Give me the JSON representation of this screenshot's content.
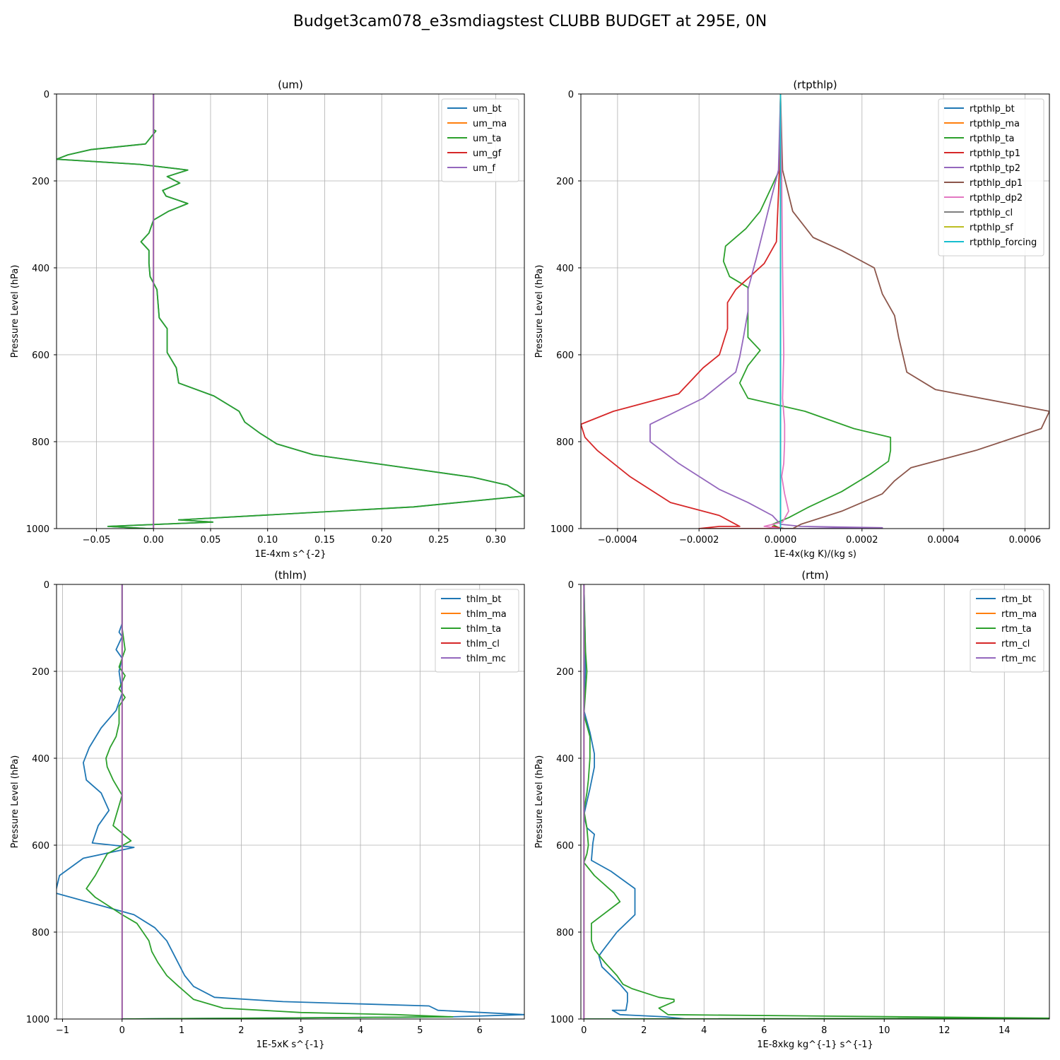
{
  "figure": {
    "title": "Budget3cam078_e3smdiagstest CLUBB BUDGET at 295E, 0N"
  },
  "chart_data": [
    {
      "type": "line",
      "title": "(um)",
      "xlabel": "1E-4xm s^{-2}",
      "ylabel": "Pressure Level (hPa)",
      "xlim": [
        -0.085,
        0.325
      ],
      "ylim": [
        1000,
        0
      ],
      "y_inverted": true,
      "xticks": [
        -0.05,
        0,
        0.05,
        0.1,
        0.15,
        0.2,
        0.25,
        0.3
      ],
      "xtick_labels": [
        "−0.05",
        "0.00",
        "0.05",
        "0.10",
        "0.15",
        "0.20",
        "0.25",
        "0.30"
      ],
      "yticks": [
        0,
        200,
        400,
        600,
        800,
        1000
      ],
      "ytick_labels": [
        "0",
        "200",
        "400",
        "600",
        "800",
        "1000"
      ],
      "grid": true,
      "legend_position": "top-right",
      "series": [
        {
          "name": "um_bt",
          "color": "#1f77b4",
          "hidden_behind_other_series": true,
          "x": [
            0,
            0,
            0.002,
            -0.007,
            -0.055,
            -0.075,
            -0.085,
            -0.012,
            0.03,
            0.012,
            0.023,
            0.008,
            0.011,
            0.03,
            0.013,
            0,
            -0.004,
            -0.011,
            -0.004,
            -0.004,
            -0.003,
            0.003,
            0.005,
            0.012,
            0.012,
            0.02,
            0.022,
            0.053,
            0.075,
            0.08,
            0.093,
            0.108,
            0.14,
            0.28,
            0.31,
            0.325,
            0.228,
            0.022,
            0.052,
            -0.04,
            -0.005,
            0
          ],
          "y": [
            0,
            82,
            85,
            115,
            128,
            140,
            150,
            162,
            175,
            190,
            205,
            222,
            235,
            252,
            270,
            290,
            320,
            340,
            360,
            390,
            420,
            450,
            515,
            540,
            595,
            630,
            665,
            695,
            730,
            755,
            780,
            805,
            830,
            882,
            900,
            925,
            950,
            980,
            985,
            995,
            1000,
            1000
          ]
        },
        {
          "name": "um_ma",
          "color": "#ff7f0e",
          "x": [
            0,
            0
          ],
          "y": [
            0,
            1000
          ]
        },
        {
          "name": "um_ta",
          "color": "#2ca02c",
          "x": [
            0,
            0,
            0.002,
            -0.007,
            -0.055,
            -0.075,
            -0.085,
            -0.012,
            0.03,
            0.012,
            0.023,
            0.008,
            0.011,
            0.03,
            0.013,
            0,
            -0.004,
            -0.011,
            -0.004,
            -0.004,
            -0.003,
            0.003,
            0.005,
            0.012,
            0.012,
            0.02,
            0.022,
            0.053,
            0.075,
            0.08,
            0.093,
            0.108,
            0.14,
            0.28,
            0.31,
            0.325,
            0.228,
            0.022,
            0.052,
            -0.04,
            -0.005,
            0
          ],
          "y": [
            0,
            82,
            85,
            115,
            128,
            140,
            150,
            162,
            175,
            190,
            205,
            222,
            235,
            252,
            270,
            290,
            320,
            340,
            360,
            390,
            420,
            450,
            515,
            540,
            595,
            630,
            665,
            695,
            730,
            755,
            780,
            805,
            830,
            882,
            900,
            925,
            950,
            980,
            985,
            995,
            1000,
            1000
          ]
        },
        {
          "name": "um_gf",
          "color": "#d62728",
          "x": [
            0,
            0
          ],
          "y": [
            0,
            1000
          ]
        },
        {
          "name": "um_f",
          "color": "#9467bd",
          "x": [
            0,
            0
          ],
          "y": [
            0,
            1000
          ]
        }
      ]
    },
    {
      "type": "line",
      "title": "(rtpthlp)",
      "xlabel": "1E-4x(kg K)/(kg s)",
      "ylabel": "Pressure Level (hPa)",
      "xlim": [
        -0.00049,
        0.00066
      ],
      "ylim": [
        1000,
        0
      ],
      "y_inverted": true,
      "xticks": [
        -0.0004,
        -0.0002,
        0,
        0.0002,
        0.0004,
        0.0006
      ],
      "xtick_labels": [
        "−0.0004",
        "−0.0002",
        "0.0000",
        "0.0002",
        "0.0004",
        "0.0006"
      ],
      "yticks": [
        0,
        200,
        400,
        600,
        800,
        1000
      ],
      "ytick_labels": [
        "0",
        "200",
        "400",
        "600",
        "800",
        "1000"
      ],
      "grid": true,
      "legend_position": "top-right",
      "series": [
        {
          "name": "rtpthlp_bt",
          "color": "#1f77b4",
          "x": [
            0,
            0
          ],
          "y": [
            0,
            1000
          ]
        },
        {
          "name": "rtpthlp_ma",
          "color": "#ff7f0e",
          "x": [
            0,
            0
          ],
          "y": [
            0,
            1000
          ]
        },
        {
          "name": "rtpthlp_ta",
          "color": "#2ca02c",
          "x": [
            0,
            -3e-06,
            -2e-05,
            -5e-05,
            -8.5e-05,
            -0.000135,
            -0.00014,
            -0.000125,
            -8e-05,
            -8e-05,
            -8e-05,
            -8e-05,
            -5e-05,
            -8e-05,
            -0.0001,
            -8e-05,
            6e-05,
            0.00018,
            0.00027,
            0.00027,
            0.000265,
            0.00022,
            0.00015,
            7e-05,
            2e-05,
            -2e-05,
            0
          ],
          "y": [
            0,
            175,
            210,
            270,
            310,
            350,
            385,
            420,
            445,
            480,
            520,
            560,
            590,
            625,
            665,
            700,
            730,
            770,
            790,
            820,
            845,
            875,
            915,
            950,
            975,
            990,
            1000
          ]
        },
        {
          "name": "rtpthlp_tp1",
          "color": "#d62728",
          "x": [
            0,
            -3e-06,
            -5e-06,
            -1e-05,
            -4e-05,
            -0.00011,
            -0.00013,
            -0.00013,
            -0.00014,
            -0.00015,
            -0.00019,
            -0.00025,
            -0.00041,
            -0.00049,
            -0.00048,
            -0.00045,
            -0.00037,
            -0.00027,
            -0.00015,
            -0.00011,
            -0.0001,
            -0.00015,
            -0.0002,
            1e-05,
            -2e-05,
            0
          ],
          "y": [
            0,
            175,
            230,
            340,
            390,
            450,
            480,
            540,
            570,
            600,
            630,
            690,
            730,
            760,
            790,
            820,
            880,
            940,
            970,
            990,
            995,
            995,
            1000,
            1000,
            995,
            1000
          ]
        },
        {
          "name": "rtpthlp_tp2",
          "color": "#9467bd",
          "x": [
            0,
            -5e-06,
            -2e-05,
            -6e-05,
            -8e-05,
            -8e-05,
            -9e-05,
            -0.0001,
            -0.00011,
            -0.00019,
            -0.00032,
            -0.00032,
            -0.00025,
            -0.00015,
            -8e-05,
            -2e-05,
            0,
            5e-05,
            0.00025,
            5e-05,
            0
          ],
          "y": [
            0,
            175,
            230,
            380,
            450,
            500,
            555,
            605,
            640,
            700,
            760,
            800,
            850,
            910,
            940,
            970,
            990,
            995,
            998,
            1000,
            1000
          ]
        },
        {
          "name": "rtpthlp_dp1",
          "color": "#8c564b",
          "x": [
            0,
            5e-06,
            3e-05,
            8e-05,
            0.00015,
            0.00023,
            0.00025,
            0.00028,
            0.00029,
            0.0003,
            0.00031,
            0.00038,
            0.00066,
            0.00064,
            0.00048,
            0.00032,
            0.00028,
            0.00025,
            0.00015,
            5e-05,
            3e-05,
            0
          ],
          "y": [
            0,
            175,
            270,
            330,
            360,
            400,
            460,
            510,
            560,
            600,
            640,
            680,
            730,
            770,
            820,
            860,
            890,
            920,
            960,
            990,
            1000,
            1000
          ]
        },
        {
          "name": "rtpthlp_dp2",
          "color": "#e377c2",
          "x": [
            0,
            3e-06,
            5e-06,
            8e-06,
            5e-06,
            1e-05,
            1e-05,
            8e-06,
            3e-06,
            1e-05,
            2e-05,
            5e-06,
            -4e-05,
            0
          ],
          "y": [
            0,
            200,
            400,
            600,
            700,
            760,
            800,
            850,
            880,
            920,
            960,
            985,
            995,
            1000
          ]
        },
        {
          "name": "rtpthlp_cl",
          "color": "#7f7f7f",
          "x": [
            0,
            0
          ],
          "y": [
            0,
            1000
          ]
        },
        {
          "name": "rtpthlp_sf",
          "color": "#bcbd22",
          "x": [
            0,
            0
          ],
          "y": [
            0,
            1000
          ]
        },
        {
          "name": "rtpthlp_forcing",
          "color": "#17becf",
          "x": [
            0,
            0
          ],
          "y": [
            0,
            1000
          ]
        }
      ]
    },
    {
      "type": "line",
      "title": "(thlm)",
      "xlabel": "1E-5xK s^{-1}",
      "ylabel": "Pressure Level (hPa)",
      "xlim": [
        -1.1,
        6.75
      ],
      "ylim": [
        1000,
        0
      ],
      "y_inverted": true,
      "xticks": [
        -1,
        0,
        1,
        2,
        3,
        4,
        5,
        6
      ],
      "xtick_labels": [
        "−1",
        "0",
        "1",
        "2",
        "3",
        "4",
        "5",
        "6"
      ],
      "yticks": [
        0,
        200,
        400,
        600,
        800,
        1000
      ],
      "ytick_labels": [
        "0",
        "200",
        "400",
        "600",
        "800",
        "1000"
      ],
      "grid": true,
      "legend_position": "top-right",
      "series": [
        {
          "name": "thlm_bt",
          "color": "#1f77b4",
          "x": [
            0,
            0,
            -0.05,
            0,
            -0.1,
            0,
            -0.05,
            0,
            -0.1,
            -0.35,
            -0.55,
            -0.65,
            -0.6,
            -0.35,
            -0.22,
            -0.4,
            -0.5,
            0.2,
            -0.65,
            -1.05,
            -1.12,
            0.2,
            0.55,
            0.75,
            0.9,
            1.05,
            1.2,
            1.55,
            2.7,
            5.15,
            5.3,
            6.75,
            5.55,
            0
          ],
          "y": [
            0,
            90,
            110,
            120,
            150,
            170,
            200,
            250,
            290,
            330,
            375,
            410,
            450,
            480,
            520,
            555,
            595,
            605,
            630,
            670,
            710,
            760,
            790,
            820,
            860,
            900,
            925,
            950,
            960,
            970,
            980,
            990,
            995,
            1000
          ]
        },
        {
          "name": "thlm_ma",
          "color": "#ff7f0e",
          "x": [
            0,
            0
          ],
          "y": [
            0,
            1000
          ]
        },
        {
          "name": "thlm_ta",
          "color": "#2ca02c",
          "x": [
            0,
            0,
            0.05,
            -0.05,
            0.05,
            -0.05,
            0.05,
            -0.05,
            -0.05,
            -0.1,
            -0.2,
            -0.27,
            -0.25,
            -0.15,
            0,
            -0.15,
            0.15,
            -0.25,
            -0.45,
            -0.6,
            -0.45,
            0,
            0.25,
            0.35,
            0.45,
            0.5,
            0.6,
            0.75,
            0.95,
            1.2,
            1.7,
            3.0,
            4.6,
            5.55,
            0
          ],
          "y": [
            0,
            100,
            150,
            190,
            210,
            240,
            260,
            280,
            320,
            350,
            375,
            400,
            420,
            450,
            485,
            555,
            590,
            620,
            670,
            700,
            720,
            760,
            780,
            800,
            820,
            845,
            870,
            900,
            925,
            955,
            975,
            985,
            990,
            995,
            1000
          ]
        },
        {
          "name": "thlm_cl",
          "color": "#d62728",
          "x": [
            0,
            0
          ],
          "y": [
            0,
            1000
          ]
        },
        {
          "name": "thlm_mc",
          "color": "#9467bd",
          "x": [
            0,
            0
          ],
          "y": [
            0,
            1000
          ]
        }
      ]
    },
    {
      "type": "line",
      "title": "(rtm)",
      "xlabel": "1E-8xkg kg^{-1} s^{-1}",
      "ylabel": "Pressure Level (hPa)",
      "xlim": [
        -0.1,
        15.5
      ],
      "ylim": [
        1000,
        0
      ],
      "y_inverted": true,
      "xticks": [
        0,
        2,
        4,
        6,
        8,
        10,
        12,
        14
      ],
      "xtick_labels": [
        "0",
        "2",
        "4",
        "6",
        "8",
        "10",
        "12",
        "14"
      ],
      "yticks": [
        0,
        200,
        400,
        600,
        800,
        1000
      ],
      "ytick_labels": [
        "0",
        "200",
        "400",
        "600",
        "800",
        "1000"
      ],
      "grid": true,
      "legend_position": "top-right",
      "series": [
        {
          "name": "rtm_bt",
          "color": "#1f77b4",
          "x": [
            0,
            0.05,
            0.05,
            0,
            0.2,
            0.35,
            0.35,
            0.2,
            0.1,
            0,
            0.1,
            0.35,
            0.3,
            0.25,
            0.9,
            1.7,
            1.7,
            1.1,
            0.6,
            0.5,
            0.6,
            1.2,
            1.45,
            1.45,
            1.4,
            0.95,
            1.2,
            2.7,
            3.4,
            0
          ],
          "y": [
            0,
            150,
            200,
            290,
            340,
            390,
            420,
            470,
            500,
            530,
            560,
            575,
            595,
            635,
            660,
            700,
            760,
            800,
            845,
            855,
            880,
            920,
            940,
            960,
            980,
            980,
            990,
            995,
            1000,
            1000
          ]
        },
        {
          "name": "rtm_ma",
          "color": "#ff7f0e",
          "x": [
            0,
            0
          ],
          "y": [
            0,
            1000
          ]
        },
        {
          "name": "rtm_ta",
          "color": "#2ca02c",
          "x": [
            0,
            0.05,
            0.1,
            0,
            0.2,
            0.2,
            0.15,
            0.1,
            0,
            0.1,
            0.15,
            0.1,
            0,
            0.35,
            1.0,
            1.2,
            0.25,
            0.25,
            0.35,
            0.7,
            1.1,
            1.3,
            1.6,
            2.5,
            3.0,
            3.0,
            2.5,
            2.8,
            15.5,
            0
          ],
          "y": [
            0,
            150,
            200,
            300,
            350,
            400,
            450,
            480,
            520,
            560,
            600,
            620,
            640,
            670,
            710,
            730,
            780,
            820,
            840,
            870,
            900,
            920,
            930,
            950,
            955,
            960,
            975,
            990,
            998,
            1000
          ]
        },
        {
          "name": "rtm_cl",
          "color": "#d62728",
          "x": [
            0,
            0
          ],
          "y": [
            0,
            1000
          ]
        },
        {
          "name": "rtm_mc",
          "color": "#9467bd",
          "x": [
            0,
            0
          ],
          "y": [
            0,
            1000
          ]
        }
      ]
    }
  ]
}
